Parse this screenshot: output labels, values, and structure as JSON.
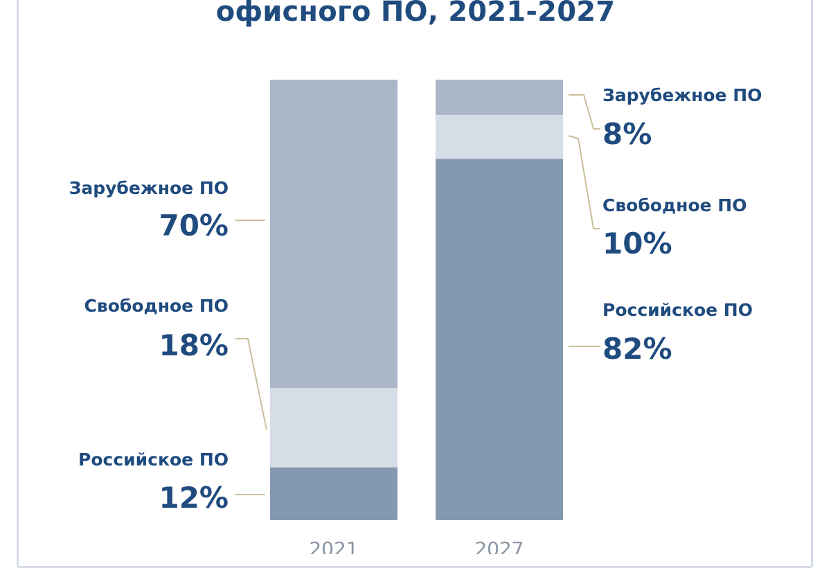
{
  "chart_data": {
    "type": "bar",
    "stacked": true,
    "title": "офисного ПО, 2021-2027",
    "categories": [
      "2021",
      "2027"
    ],
    "series": [
      {
        "name": "Российское ПО",
        "values": [
          12,
          82
        ],
        "color": "#8598b1"
      },
      {
        "name": "Свободное ПО",
        "values": [
          18,
          10
        ],
        "color": "#d6dde6"
      },
      {
        "name": "Зарубежное ПО",
        "values": [
          70,
          8
        ],
        "color": "#abb7c9"
      }
    ],
    "data_labels": {
      "2021": [
        {
          "series": "Зарубежное ПО",
          "name": "Зарубежное ПО",
          "value": "70%"
        },
        {
          "series": "Свободное ПО",
          "name": "Свободное ПО",
          "value": "18%"
        },
        {
          "series": "Российское ПО",
          "name": "Российское ПО",
          "value": "12%"
        }
      ],
      "2027": [
        {
          "series": "Зарубежное ПО",
          "name": "Зарубежное ПО",
          "value": "8%"
        },
        {
          "series": "Свободное ПО",
          "name": "Свободное ПО",
          "value": "10%"
        },
        {
          "series": "Российское ПО",
          "name": "Российское ПО",
          "value": "82%"
        }
      ]
    },
    "ylim": [
      0,
      100
    ],
    "grid": false,
    "legend": "none",
    "colors": {
      "title": "#1f4b7e",
      "labels": "#1f4b7e",
      "category_labels": "#8c96a3",
      "leader_lines": "#c9bf9a",
      "frame": "#d6dde6"
    }
  }
}
